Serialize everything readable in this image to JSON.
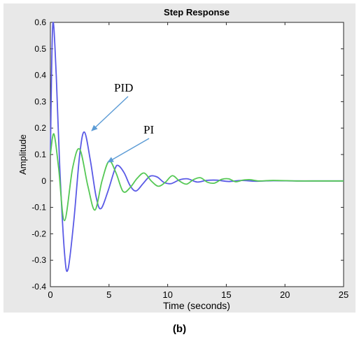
{
  "chart_data": {
    "type": "line",
    "title": "Step Response",
    "xlabel": "Time (seconds)",
    "ylabel": "Amplitude",
    "xlim": [
      0,
      25
    ],
    "ylim": [
      -0.4,
      0.6
    ],
    "x_ticks": [
      0,
      5,
      10,
      15,
      20,
      25
    ],
    "y_ticks": [
      -0.4,
      -0.3,
      -0.2,
      -0.1,
      0,
      0.1,
      0.2,
      0.3,
      0.4,
      0.5,
      0.6
    ],
    "grid": false,
    "series": [
      {
        "color": "#5a5ae6",
        "x": [
          0,
          0.2,
          0.5,
          0.8,
          1.2,
          1.5,
          2.0,
          2.5,
          2.9,
          3.4,
          3.9,
          4.3,
          4.9,
          5.5,
          5.8,
          6.3,
          6.8,
          7.3,
          7.9,
          8.5,
          9.1,
          9.7,
          10.3,
          11.0,
          11.7,
          12.5,
          13.3,
          14.2,
          15.2,
          16.3,
          17.5,
          19.0,
          21.0,
          23.0,
          25.0
        ],
        "y": [
          0.1,
          0.59,
          0.4,
          0.05,
          -0.27,
          -0.335,
          -0.15,
          0.1,
          0.185,
          0.08,
          -0.06,
          -0.105,
          -0.04,
          0.045,
          0.058,
          0.03,
          -0.018,
          -0.038,
          -0.01,
          0.018,
          0.015,
          -0.006,
          -0.01,
          0.004,
          0.008,
          -0.004,
          0.002,
          0.003,
          -0.002,
          0.002,
          -0.001,
          0.001,
          0,
          0,
          0
        ]
      },
      {
        "color": "#55c855",
        "x": [
          0,
          0.3,
          0.7,
          1.2,
          1.9,
          2.5,
          3.2,
          3.8,
          4.4,
          5.0,
          5.6,
          6.2,
          6.8,
          7.4,
          8.0,
          8.6,
          9.2,
          9.8,
          10.4,
          11.0,
          11.6,
          12.2,
          12.8,
          13.4,
          14.0,
          14.6,
          15.2,
          15.8,
          16.4,
          17.0,
          17.8,
          19.0,
          21.0,
          23.0,
          25.0
        ],
        "y": [
          0.1,
          0.178,
          0.05,
          -0.15,
          0.05,
          0.12,
          -0.02,
          -0.11,
          0.0,
          0.075,
          0.03,
          -0.04,
          -0.025,
          0.01,
          0.03,
          0.0,
          -0.02,
          -0.005,
          0.02,
          0.0,
          -0.012,
          0.005,
          0.012,
          -0.005,
          -0.008,
          0.006,
          0.008,
          -0.003,
          0.003,
          0.005,
          0.0,
          0.002,
          0,
          0,
          0
        ]
      }
    ],
    "annotations": [
      {
        "text": "PID",
        "color": "#000000",
        "arrow_color": "#5b9bd5"
      },
      {
        "text": "PI",
        "color": "#000000",
        "arrow_color": "#5b9bd5"
      }
    ]
  },
  "caption": "(b)"
}
